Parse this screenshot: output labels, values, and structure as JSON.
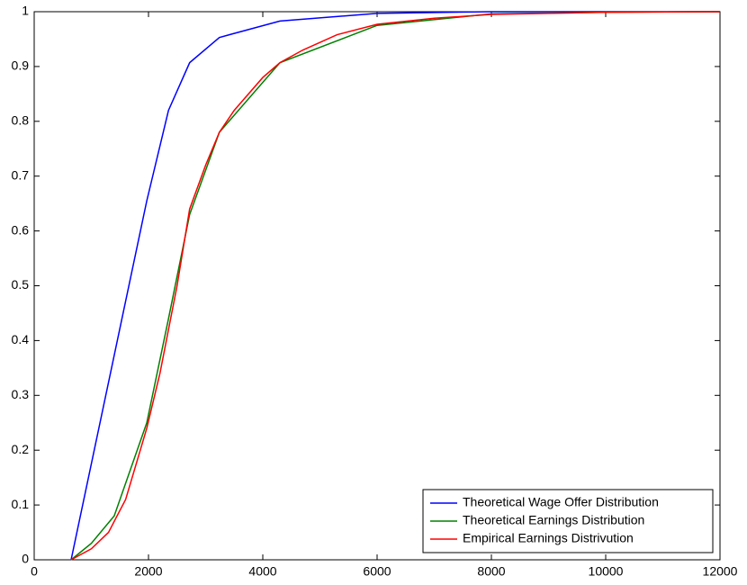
{
  "chart_data": {
    "type": "line",
    "xlim": [
      0,
      12000
    ],
    "xticks": [
      0,
      2000,
      4000,
      6000,
      8000,
      10000,
      12000
    ],
    "ylim": [
      0,
      1
    ],
    "yticks": [
      0,
      0.1,
      0.2,
      0.3,
      0.4,
      0.5,
      0.6,
      0.7,
      0.8,
      0.9,
      1
    ],
    "legend": "lower right",
    "series": [
      {
        "name": "Theoretical Wage Offer Distribution",
        "color": "#0000ff",
        "x": [
          646,
          1970,
          2350,
          2720,
          3240,
          4300,
          6000,
          8000,
          12000
        ],
        "values": [
          0,
          0.655,
          0.82,
          0.907,
          0.953,
          0.983,
          0.997,
          1,
          1
        ]
      },
      {
        "name": "Theoretical Earnings Distribution",
        "color": "#008000",
        "x": [
          646,
          1000,
          1400,
          1970,
          2350,
          2720,
          3240,
          4300,
          6000,
          8000,
          10000,
          12000
        ],
        "values": [
          0,
          0.03,
          0.08,
          0.25,
          0.44,
          0.63,
          0.78,
          0.907,
          0.975,
          0.996,
          0.999,
          1
        ]
      },
      {
        "name": "Empirical Earnings Distrivution",
        "color": "#ff0000",
        "x": [
          646,
          1000,
          1300,
          1600,
          1970,
          2200,
          2500,
          2720,
          3000,
          3240,
          3500,
          4000,
          4300,
          4700,
          5300,
          6000,
          7000,
          8000,
          10000,
          12000
        ],
        "values": [
          0,
          0.02,
          0.05,
          0.11,
          0.24,
          0.34,
          0.5,
          0.64,
          0.72,
          0.78,
          0.82,
          0.88,
          0.907,
          0.93,
          0.958,
          0.977,
          0.988,
          0.995,
          0.999,
          1
        ]
      }
    ]
  }
}
